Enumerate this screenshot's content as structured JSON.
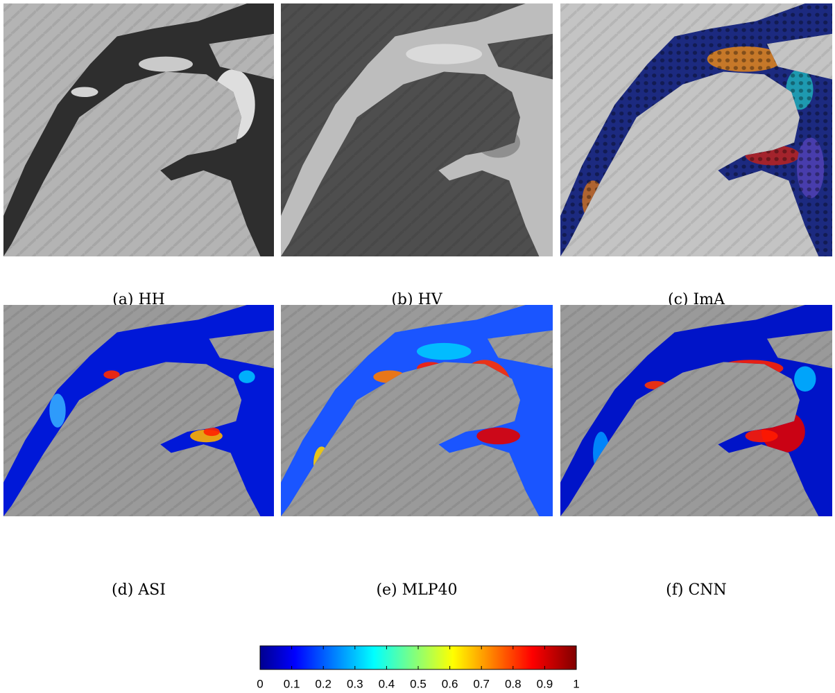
{
  "panels": [
    {
      "caption": "(a) HH"
    },
    {
      "caption": "(b) HV"
    },
    {
      "caption": "(c) ImA"
    },
    {
      "caption": "(d) ASI"
    },
    {
      "caption": "(e) MLP40"
    },
    {
      "caption": "(f) CNN"
    }
  ],
  "colorbar": {
    "lim": [
      0,
      1
    ],
    "ticks": [
      0,
      0.1,
      0.2,
      0.3,
      0.4,
      0.5,
      0.6,
      0.7,
      0.8,
      0.9,
      1
    ]
  }
}
